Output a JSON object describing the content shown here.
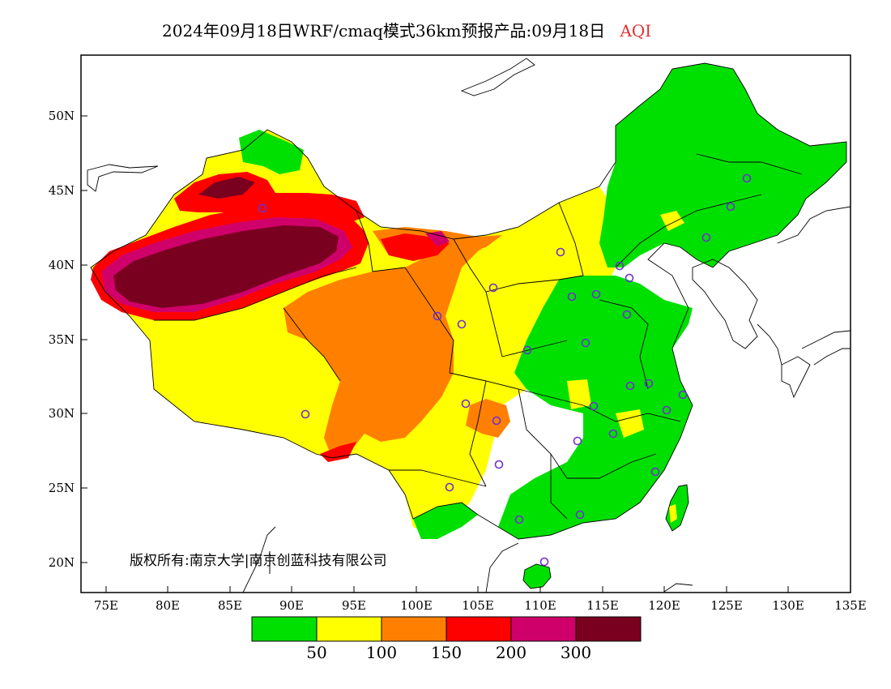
{
  "title": {
    "main": "2024年09月18日WRF/cmaq模式36km预报产品:09月18日",
    "variable": "AQI"
  },
  "copyright": "版权所有:南京大学|南京创蓝科技有限公司",
  "axes": {
    "x_ticks": [
      "75E",
      "80E",
      "85E",
      "90E",
      "95E",
      "100E",
      "105E",
      "110E",
      "115E",
      "120E",
      "125E",
      "130E",
      "135E"
    ],
    "y_ticks": [
      "50N",
      "45N",
      "40N",
      "35N",
      "30N",
      "25N",
      "20N"
    ]
  },
  "legend": {
    "colors": [
      "#00e000",
      "#ffff00",
      "#ff8000",
      "#ff0000",
      "#d0006a",
      "#7a0020"
    ],
    "labels": [
      "50",
      "100",
      "150",
      "200",
      "300"
    ]
  },
  "colors": {
    "frame": "#000000",
    "city_marker": "#7030d0",
    "title_accent": "#e03030"
  }
}
